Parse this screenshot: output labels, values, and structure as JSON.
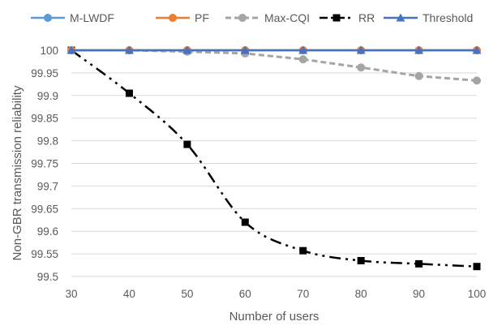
{
  "chart_data": {
    "type": "line",
    "title": "",
    "xlabel": "Number of users",
    "ylabel": "Non-GBR transmission reliability",
    "x": [
      30,
      40,
      50,
      60,
      70,
      80,
      90,
      100
    ],
    "xlim": [
      30,
      100
    ],
    "ylim": [
      99.5,
      100
    ],
    "y_ticks": [
      99.5,
      99.55,
      99.6,
      99.65,
      99.7,
      99.75,
      99.8,
      99.85,
      99.9,
      99.95,
      100
    ],
    "y_tick_labels": [
      "99.5",
      "99.55",
      "99.6",
      "99.65",
      "99.7",
      "99.75",
      "99.8",
      "99.85",
      "99.9",
      "99.95",
      "100"
    ],
    "x_tick_labels": [
      "30",
      "40",
      "50",
      "60",
      "70",
      "80",
      "90",
      "100"
    ],
    "grid": "horizontal",
    "legend_position": "top",
    "series": [
      {
        "name": "M-LWDF",
        "color": "#5B9BD5",
        "marker": "circle",
        "dash": "solid",
        "values": [
          100,
          100,
          100,
          100,
          100,
          100,
          100,
          100
        ]
      },
      {
        "name": "PF",
        "color": "#ED7D31",
        "marker": "circle",
        "dash": "solid",
        "values": [
          100,
          100,
          100,
          100,
          100,
          100,
          100,
          100
        ]
      },
      {
        "name": "Max-CQI",
        "color": "#A5A5A5",
        "marker": "circle",
        "dash": "dashed",
        "values": [
          100,
          100,
          99.997,
          99.993,
          99.98,
          99.962,
          99.943,
          99.933
        ]
      },
      {
        "name": "RR",
        "color": "#000000",
        "marker": "square",
        "dash": "dashdotdot",
        "values": [
          100,
          99.905,
          99.792,
          99.62,
          99.557,
          99.535,
          99.528,
          99.522
        ]
      },
      {
        "name": "Threshold",
        "color": "#4472C4",
        "marker": "triangle",
        "dash": "solid",
        "values": [
          100,
          100,
          100,
          100,
          100,
          100,
          100,
          100
        ]
      }
    ]
  }
}
